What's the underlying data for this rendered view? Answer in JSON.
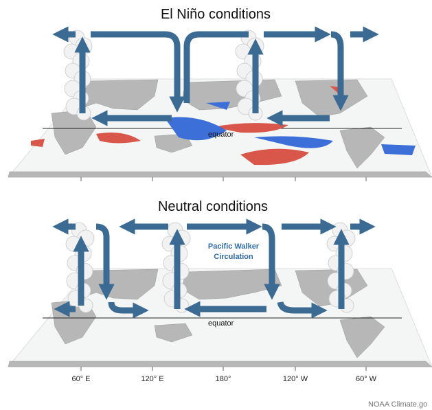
{
  "panels": [
    {
      "title": "El Niño conditions",
      "equator_label": "equator"
    },
    {
      "title": "Neutral conditions",
      "equator_label": "equator",
      "annotation": [
        "Pacific Walker",
        "Circulation"
      ]
    }
  ],
  "longitude_labels": [
    "60° E",
    "120° E",
    "180°",
    "120° W",
    "60° W"
  ],
  "credit": "NOAA Climate.go"
}
